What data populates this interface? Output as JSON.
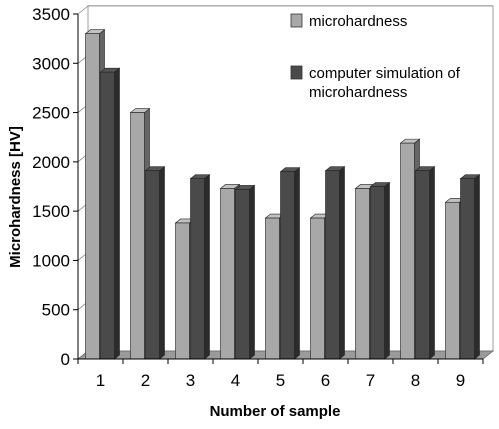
{
  "chart_data": {
    "type": "bar",
    "style": "3d-grouped-bar",
    "categories": [
      "1",
      "2",
      "3",
      "4",
      "5",
      "6",
      "7",
      "8",
      "9"
    ],
    "series": [
      {
        "name": "microhardness",
        "color": "#a8a8a8",
        "values": [
          3300,
          2500,
          1380,
          1730,
          1430,
          1430,
          1730,
          2190,
          1590
        ]
      },
      {
        "name": "computer simulation of microhardness",
        "color": "#4a4a4a",
        "values": [
          2910,
          1910,
          1830,
          1720,
          1900,
          1910,
          1750,
          1910,
          1830
        ]
      }
    ],
    "xlabel": "Number of sample",
    "ylabel": "Microhardness [HV]",
    "ylim": [
      0,
      3500
    ],
    "yticks": [
      "0",
      "500",
      "1000",
      "1500",
      "2000",
      "2500",
      "3000",
      "3500"
    ],
    "grid": true,
    "legend_position": "top-right"
  }
}
